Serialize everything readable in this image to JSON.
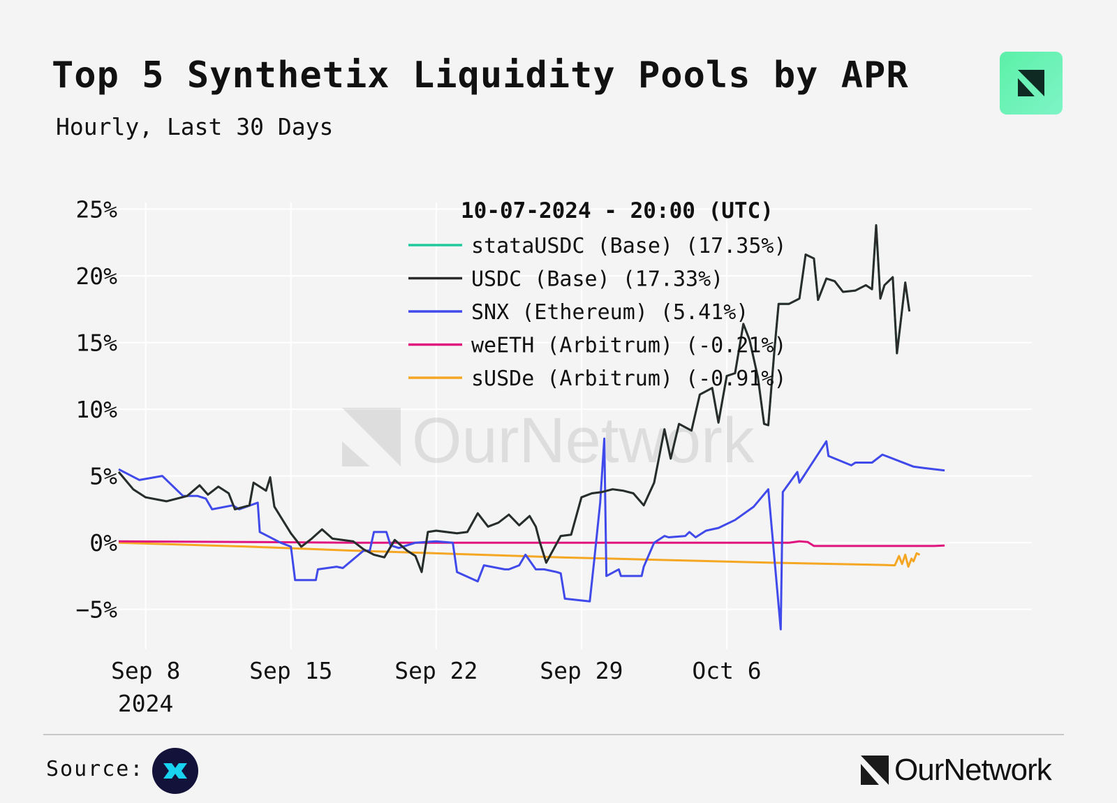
{
  "header": {
    "title": "Top 5 Synthetix Liquidity Pools by APR",
    "subtitle": "Hourly, Last 30 Days"
  },
  "footer": {
    "source_label": "Source:",
    "brand_name": "OurNetwork"
  },
  "colors": {
    "background": "#f4f4f4",
    "grid": "#ffffff",
    "accent": "#5cf0a8"
  },
  "chart_data": {
    "type": "line",
    "title": "Top 5 Synthetix Liquidity Pools by APR",
    "subtitle": "Hourly, Last 30 Days",
    "xlabel": "",
    "ylabel": "",
    "watermark": "OurNetwork",
    "x_range_days": [
      -1.3,
      42.7
    ],
    "x_ticks": [
      {
        "day": 0,
        "label": "Sep 8",
        "sublabel": "2024"
      },
      {
        "day": 7,
        "label": "Sep 15",
        "sublabel": ""
      },
      {
        "day": 14,
        "label": "Sep 22",
        "sublabel": ""
      },
      {
        "day": 21,
        "label": "Sep 29",
        "sublabel": ""
      },
      {
        "day": 28,
        "label": "Oct 6",
        "sublabel": ""
      }
    ],
    "ylim": [
      -8,
      25.5
    ],
    "y_ticks": [
      {
        "value": -5,
        "label": "−5%"
      },
      {
        "value": 0,
        "label": "0%"
      },
      {
        "value": 5,
        "label": "5%"
      },
      {
        "value": 10,
        "label": "10%"
      },
      {
        "value": 15,
        "label": "15%"
      },
      {
        "value": 20,
        "label": "20%"
      },
      {
        "value": 25,
        "label": "25%"
      }
    ],
    "grid": true,
    "legend": {
      "placement": "top-center",
      "title": "10-07-2024 - 20:00 (UTC)"
    },
    "series": [
      {
        "name": "stataUSDC (Base) (17.35%)",
        "color": "#1fc99b",
        "points": [
          [
            -1.3,
            5.3
          ],
          [
            -0.6,
            4.0
          ],
          [
            0,
            3.4
          ],
          [
            1,
            3.1
          ],
          [
            2,
            3.5
          ],
          [
            2.6,
            4.3
          ],
          [
            3,
            3.6
          ],
          [
            3.5,
            4.2
          ],
          [
            4,
            3.7
          ],
          [
            4.3,
            2.5
          ],
          [
            5,
            2.8
          ],
          [
            5.2,
            4.5
          ],
          [
            5.8,
            3.9
          ],
          [
            6,
            4.9
          ],
          [
            6.2,
            2.7
          ],
          [
            7,
            0.7
          ],
          [
            7.5,
            -0.3
          ],
          [
            8,
            0.3
          ],
          [
            8.5,
            1.0
          ],
          [
            9,
            0.3
          ],
          [
            10,
            0.1
          ],
          [
            10.5,
            -0.5
          ],
          [
            11,
            -0.9
          ],
          [
            11.5,
            -1.1
          ],
          [
            12,
            0.2
          ],
          [
            12.6,
            -0.6
          ],
          [
            13,
            -1.0
          ],
          [
            13.3,
            -2.2
          ],
          [
            13.6,
            0.8
          ],
          [
            14,
            0.9
          ],
          [
            15,
            0.7
          ],
          [
            15.5,
            0.8
          ],
          [
            16,
            2.2
          ],
          [
            16.5,
            1.2
          ],
          [
            17,
            1.5
          ],
          [
            17.5,
            2.1
          ],
          [
            18,
            1.3
          ],
          [
            18.5,
            2.0
          ],
          [
            18.8,
            1.2
          ],
          [
            19,
            0.0
          ],
          [
            19.3,
            -1.5
          ],
          [
            20,
            0.5
          ],
          [
            20.5,
            0.6
          ],
          [
            21,
            3.4
          ],
          [
            21.5,
            3.7
          ],
          [
            22,
            3.8
          ],
          [
            22.5,
            4.0
          ],
          [
            23,
            3.9
          ],
          [
            23.5,
            3.7
          ],
          [
            24,
            2.8
          ],
          [
            24.5,
            4.5
          ],
          [
            25,
            8.5
          ],
          [
            25.3,
            6.3
          ],
          [
            25.7,
            8.9
          ],
          [
            26.3,
            8.4
          ],
          [
            26.7,
            11.1
          ],
          [
            27.3,
            11.6
          ],
          [
            27.6,
            9.0
          ],
          [
            28,
            12.5
          ],
          [
            28.4,
            12.7
          ],
          [
            28.8,
            16.4
          ],
          [
            29.1,
            15.2
          ],
          [
            29.5,
            12.4
          ],
          [
            29.8,
            8.9
          ],
          [
            30,
            8.8
          ],
          [
            30.3,
            14.5
          ],
          [
            30.5,
            17.9
          ],
          [
            31,
            17.9
          ],
          [
            31.5,
            18.3
          ],
          [
            31.8,
            21.6
          ],
          [
            32.2,
            21.3
          ],
          [
            32.4,
            18.2
          ],
          [
            32.8,
            19.8
          ],
          [
            33.2,
            19.6
          ],
          [
            33.6,
            18.8
          ],
          [
            34.2,
            18.9
          ],
          [
            34.7,
            19.3
          ],
          [
            35,
            19.0
          ],
          [
            35.2,
            23.8
          ],
          [
            35.4,
            18.3
          ],
          [
            35.6,
            19.3
          ],
          [
            36,
            19.9
          ],
          [
            36.2,
            14.2
          ],
          [
            36.4,
            16.8
          ],
          [
            36.6,
            19.5
          ],
          [
            36.8,
            17.35
          ]
        ]
      },
      {
        "name": "USDC (Base) (17.33%)",
        "color": "#2b2b2b",
        "points": [
          [
            -1.3,
            5.3
          ],
          [
            -0.6,
            4.0
          ],
          [
            0,
            3.4
          ],
          [
            1,
            3.1
          ],
          [
            2,
            3.5
          ],
          [
            2.6,
            4.3
          ],
          [
            3,
            3.6
          ],
          [
            3.5,
            4.2
          ],
          [
            4,
            3.7
          ],
          [
            4.3,
            2.5
          ],
          [
            5,
            2.8
          ],
          [
            5.2,
            4.5
          ],
          [
            5.8,
            3.9
          ],
          [
            6,
            4.9
          ],
          [
            6.2,
            2.7
          ],
          [
            7,
            0.7
          ],
          [
            7.5,
            -0.3
          ],
          [
            8,
            0.3
          ],
          [
            8.5,
            1.0
          ],
          [
            9,
            0.3
          ],
          [
            10,
            0.1
          ],
          [
            10.5,
            -0.5
          ],
          [
            11,
            -0.9
          ],
          [
            11.5,
            -1.1
          ],
          [
            12,
            0.2
          ],
          [
            12.6,
            -0.6
          ],
          [
            13,
            -1.0
          ],
          [
            13.3,
            -2.2
          ],
          [
            13.6,
            0.8
          ],
          [
            14,
            0.9
          ],
          [
            15,
            0.7
          ],
          [
            15.5,
            0.8
          ],
          [
            16,
            2.2
          ],
          [
            16.5,
            1.2
          ],
          [
            17,
            1.5
          ],
          [
            17.5,
            2.1
          ],
          [
            18,
            1.3
          ],
          [
            18.5,
            2.0
          ],
          [
            18.8,
            1.2
          ],
          [
            19,
            0.0
          ],
          [
            19.3,
            -1.5
          ],
          [
            20,
            0.5
          ],
          [
            20.5,
            0.6
          ],
          [
            21,
            3.4
          ],
          [
            21.5,
            3.7
          ],
          [
            22,
            3.8
          ],
          [
            22.5,
            4.0
          ],
          [
            23,
            3.9
          ],
          [
            23.5,
            3.7
          ],
          [
            24,
            2.8
          ],
          [
            24.5,
            4.5
          ],
          [
            25,
            8.5
          ],
          [
            25.3,
            6.3
          ],
          [
            25.7,
            8.9
          ],
          [
            26.3,
            8.4
          ],
          [
            26.7,
            11.1
          ],
          [
            27.3,
            11.6
          ],
          [
            27.6,
            9.0
          ],
          [
            28,
            12.5
          ],
          [
            28.4,
            12.7
          ],
          [
            28.8,
            16.4
          ],
          [
            29.1,
            15.2
          ],
          [
            29.5,
            12.4
          ],
          [
            29.8,
            8.9
          ],
          [
            30,
            8.8
          ],
          [
            30.3,
            14.5
          ],
          [
            30.5,
            17.9
          ],
          [
            31,
            17.9
          ],
          [
            31.5,
            18.3
          ],
          [
            31.8,
            21.6
          ],
          [
            32.2,
            21.3
          ],
          [
            32.4,
            18.2
          ],
          [
            32.8,
            19.8
          ],
          [
            33.2,
            19.6
          ],
          [
            33.6,
            18.8
          ],
          [
            34.2,
            18.9
          ],
          [
            34.7,
            19.3
          ],
          [
            35,
            19.0
          ],
          [
            35.2,
            23.8
          ],
          [
            35.4,
            18.3
          ],
          [
            35.6,
            19.3
          ],
          [
            36,
            19.9
          ],
          [
            36.2,
            14.2
          ],
          [
            36.4,
            16.8
          ],
          [
            36.6,
            19.5
          ],
          [
            36.8,
            17.33
          ]
        ]
      },
      {
        "name": "SNX (Ethereum) (5.41%)",
        "color": "#4049ea",
        "points": [
          [
            -1.3,
            5.5
          ],
          [
            -0.3,
            4.7
          ],
          [
            0.8,
            5.0
          ],
          [
            1.8,
            3.5
          ],
          [
            2.5,
            3.5
          ],
          [
            2.9,
            3.3
          ],
          [
            3.2,
            2.5
          ],
          [
            4.2,
            2.8
          ],
          [
            4.5,
            2.5
          ],
          [
            5.4,
            3.0
          ],
          [
            5.5,
            0.8
          ],
          [
            6.5,
            0.0
          ],
          [
            7,
            -0.3
          ],
          [
            7.2,
            -2.8
          ],
          [
            8.2,
            -2.8
          ],
          [
            8.3,
            -2.0
          ],
          [
            9.2,
            -1.8
          ],
          [
            9.5,
            -1.9
          ],
          [
            10.5,
            -0.6
          ],
          [
            10.8,
            -0.6
          ],
          [
            11,
            0.8
          ],
          [
            11.6,
            0.8
          ],
          [
            11.8,
            -0.2
          ],
          [
            12.2,
            -0.4
          ],
          [
            13,
            0.0
          ],
          [
            14,
            0.1
          ],
          [
            14.8,
            0.0
          ],
          [
            15,
            -2.2
          ],
          [
            16,
            -2.9
          ],
          [
            16.3,
            -1.7
          ],
          [
            17.3,
            -2.0
          ],
          [
            17.5,
            -2.0
          ],
          [
            18,
            -1.7
          ],
          [
            18.3,
            -0.9
          ],
          [
            18.8,
            -2.0
          ],
          [
            19.2,
            -2.0
          ],
          [
            19.8,
            -2.2
          ],
          [
            20,
            -2.3
          ],
          [
            20.2,
            -4.2
          ],
          [
            21.4,
            -4.4
          ],
          [
            21.6,
            -1.5
          ],
          [
            21.9,
            3.0
          ],
          [
            22.1,
            7.8
          ],
          [
            22.2,
            -2.5
          ],
          [
            22.8,
            -2.0
          ],
          [
            22.9,
            -2.5
          ],
          [
            23.9,
            -2.5
          ],
          [
            24,
            -1.8
          ],
          [
            24.5,
            0.0
          ],
          [
            25,
            0.5
          ],
          [
            25.2,
            0.4
          ],
          [
            26,
            0.5
          ],
          [
            26.2,
            0.8
          ],
          [
            26.5,
            0.4
          ],
          [
            27,
            0.9
          ],
          [
            27.6,
            1.1
          ],
          [
            28.4,
            1.7
          ],
          [
            29.3,
            2.7
          ],
          [
            30,
            4.0
          ],
          [
            30.6,
            -6.5
          ],
          [
            30.7,
            3.8
          ],
          [
            31.4,
            5.3
          ],
          [
            31.5,
            4.5
          ],
          [
            32.8,
            7.6
          ],
          [
            32.9,
            6.5
          ],
          [
            34,
            5.8
          ],
          [
            34.2,
            6.0
          ],
          [
            35,
            6.0
          ],
          [
            35.5,
            6.6
          ],
          [
            37,
            5.7
          ],
          [
            37.5,
            5.6
          ],
          [
            38.5,
            5.41
          ]
        ]
      },
      {
        "name": "weETH (Arbitrum) (-0.21%)",
        "color": "#e0147e",
        "points": [
          [
            -1.3,
            0.1
          ],
          [
            5,
            0.05
          ],
          [
            10,
            0.0
          ],
          [
            15,
            0.0
          ],
          [
            20,
            0.0
          ],
          [
            24.5,
            0.0
          ],
          [
            30.5,
            0.0
          ],
          [
            31,
            0.0
          ],
          [
            31.5,
            0.1
          ],
          [
            31.9,
            0.05
          ],
          [
            32.2,
            -0.25
          ],
          [
            33,
            -0.25
          ],
          [
            36,
            -0.25
          ],
          [
            38,
            -0.25
          ],
          [
            38.5,
            -0.21
          ]
        ]
      },
      {
        "name": "sUSDe (Arbitrum) (-0.91%)",
        "color": "#f5a623",
        "points": [
          [
            -1.3,
            0.0
          ],
          [
            5,
            -0.3
          ],
          [
            10,
            -0.6
          ],
          [
            15,
            -0.85
          ],
          [
            20,
            -1.1
          ],
          [
            25,
            -1.3
          ],
          [
            30,
            -1.5
          ],
          [
            35,
            -1.65
          ],
          [
            36.1,
            -1.7
          ],
          [
            36.3,
            -1.0
          ],
          [
            36.45,
            -1.6
          ],
          [
            36.6,
            -0.9
          ],
          [
            36.75,
            -1.8
          ],
          [
            36.9,
            -1.2
          ],
          [
            37,
            -1.4
          ],
          [
            37.15,
            -0.8
          ],
          [
            37.3,
            -0.91
          ]
        ]
      }
    ]
  }
}
